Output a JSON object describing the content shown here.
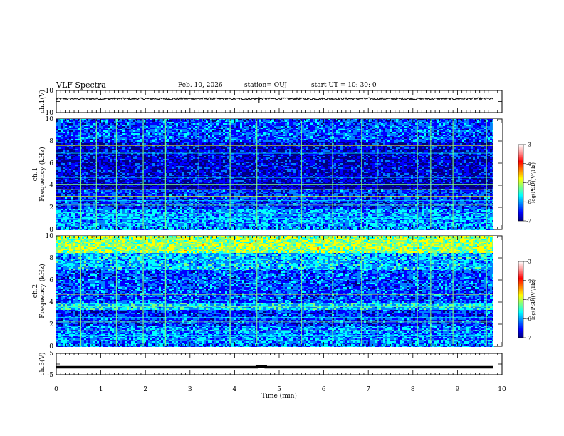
{
  "header": {
    "title": "VLF Spectra",
    "date": "Feb. 10, 2026",
    "station": "station= OUJ",
    "start_ut": "start  UT =   10: 30: 0"
  },
  "colorbar": {
    "label": "log(PSD)(V²/Hz)",
    "ticks": [
      "-3",
      "-4",
      "-5",
      "-6",
      "-7"
    ],
    "colors": [
      "#000080",
      "#0000ff",
      "#0080ff",
      "#00ffff",
      "#80ff80",
      "#ffff00",
      "#ff8000",
      "#ff0000",
      "#ff9090",
      "#ffffff"
    ]
  },
  "chart_data": [
    {
      "type": "line",
      "panel": "ch1-waveform",
      "ylabel": "ch.1(V)",
      "ylim": [
        -10,
        10
      ],
      "ytick_labels": [
        "10",
        "-10"
      ],
      "x": [
        0,
        9.8
      ],
      "series": [
        {
          "values": [
            2.5,
            2.5
          ]
        }
      ],
      "note_values_range": [
        1.5,
        3.5
      ],
      "spike_x": 4.55
    },
    {
      "type": "heatmap",
      "panel": "ch1-spectrogram",
      "ylabel_line1": "ch.1",
      "ylabel_line2": "Frequency (kHz)",
      "ylim": [
        0,
        10
      ],
      "ytick_labels": [
        "0",
        "2",
        "4",
        "6",
        "8",
        "10"
      ],
      "xlim": [
        0,
        9.8
      ],
      "clim": [
        -7,
        -3
      ],
      "band_levels": [
        {
          "from_khz": 0,
          "to_khz": 2,
          "log_psd": -6.0
        },
        {
          "from_khz": 2,
          "to_khz": 3.8,
          "log_psd": -6.4
        },
        {
          "from_khz": 3.8,
          "to_khz": 4.3,
          "log_psd": -6.9
        },
        {
          "from_khz": 4.3,
          "to_khz": 8,
          "log_psd": -6.7
        },
        {
          "from_khz": 8,
          "to_khz": 10,
          "log_psd": -6.3
        }
      ],
      "horizontal_lines_khz": [
        0.5,
        1.0,
        1.4,
        2.2,
        2.6,
        3.0,
        3.2,
        3.4,
        3.6,
        4.1,
        4.7,
        5.2,
        6.1,
        6.9,
        7.6
      ],
      "bright_impulse_times_min": [
        0.55,
        0.9,
        1.35,
        1.95,
        2.45,
        3.2,
        3.9,
        4.5,
        5.5,
        6.2,
        6.85,
        7.2,
        8.1,
        8.4,
        8.9,
        9.65,
        9.8
      ]
    },
    {
      "type": "heatmap",
      "panel": "ch2-spectrogram",
      "ylabel_line1": "ch.2",
      "ylabel_line2": "Frequency (kHz)",
      "ylim": [
        0,
        10
      ],
      "ytick_labels": [
        "0",
        "2",
        "4",
        "6",
        "8",
        "10"
      ],
      "xlim": [
        0,
        9.8
      ],
      "clim": [
        -7,
        -3
      ],
      "band_levels": [
        {
          "from_khz": 0,
          "to_khz": 2,
          "log_psd": -6.1
        },
        {
          "from_khz": 2,
          "to_khz": 3.3,
          "log_psd": -6.4
        },
        {
          "from_khz": 3.3,
          "to_khz": 4.0,
          "log_psd": -5.8
        },
        {
          "from_khz": 4.0,
          "to_khz": 7.0,
          "log_psd": -6.3
        },
        {
          "from_khz": 7.0,
          "to_khz": 8.5,
          "log_psd": -5.9
        },
        {
          "from_khz": 8.5,
          "to_khz": 10,
          "log_psd": -5.1
        }
      ],
      "horizontal_lines_khz": [
        0.5,
        1.0,
        1.4,
        2.2,
        2.6,
        3.0,
        3.6,
        4.1,
        4.7,
        5.2
      ],
      "bright_impulse_times_min": [
        0.55,
        1.35,
        1.95,
        2.45,
        3.2,
        3.9,
        4.5,
        5.5,
        6.2,
        6.85,
        7.2,
        8.1,
        8.4,
        8.9,
        9.65
      ]
    },
    {
      "type": "line",
      "panel": "ch3-waveform",
      "ylabel": "ch.3(V)",
      "ylim": [
        -5,
        5
      ],
      "ytick_labels": [
        "5",
        "-5"
      ],
      "x": [
        0,
        4.5,
        4.5,
        4.7,
        4.7,
        9.8
      ],
      "series": [
        {
          "values": [
            -1.5,
            -1.5,
            -1.2,
            -1.2,
            -1.5,
            -1.5
          ]
        }
      ]
    }
  ],
  "x_axis": {
    "label": "Time (min)",
    "xlim": [
      0,
      10
    ],
    "tick_labels": [
      "0",
      "1",
      "2",
      "3",
      "4",
      "5",
      "6",
      "7",
      "8",
      "9",
      "10"
    ]
  }
}
